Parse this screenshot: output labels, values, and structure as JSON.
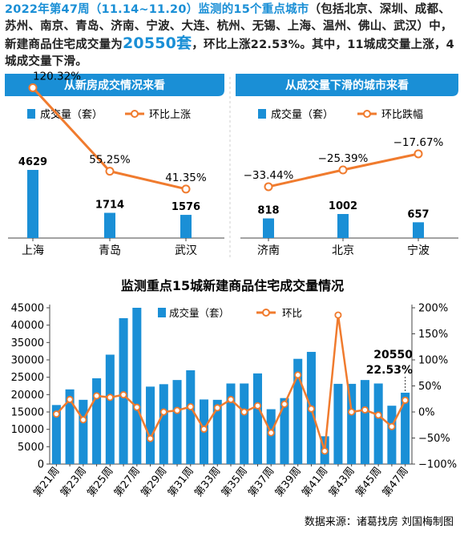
{
  "headline": {
    "lead": "2022年第47周（11.14~11.20）监测的15个重点城市",
    "cities": "（包括北京、深圳、成都、苏州、南京、青岛、济南、宁波、大连、杭州、无锡、上海、温州、佛山、武汉）中，新建商品住宅成交量为",
    "volume": "20550套",
    "rest": "，环比上涨22.53%。其中，11城成交量上涨，4城成交量下滑。"
  },
  "colors": {
    "bar": "#1a8fd6",
    "line": "#f07b2e",
    "panel_header": "#1a8fd6"
  },
  "chart_data": [
    {
      "type": "bar",
      "title": "从新房成交情况来看",
      "legend": [
        "成交量（套）",
        "环比上涨"
      ],
      "categories": [
        "上海",
        "青岛",
        "武汉"
      ],
      "series": [
        {
          "name": "成交量（套）",
          "values": [
            4629,
            1714,
            1576
          ],
          "labels": [
            "4629",
            "1714",
            "1576"
          ]
        },
        {
          "name": "环比上涨",
          "values": [
            120.32,
            55.25,
            41.35
          ],
          "labels": [
            "120.32%",
            "55.25%",
            "41.35%"
          ]
        }
      ]
    },
    {
      "type": "bar",
      "title": "从成交量下滑的城市来看",
      "legend": [
        "成交量（套）",
        "环比跌幅"
      ],
      "categories": [
        "济南",
        "北京",
        "宁波"
      ],
      "series": [
        {
          "name": "成交量（套）",
          "values": [
            818,
            1002,
            657
          ],
          "labels": [
            "818",
            "1002",
            "657"
          ]
        },
        {
          "name": "环比跌幅",
          "values": [
            -33.44,
            -25.39,
            -17.67
          ],
          "labels": [
            "−33.44%",
            "−25.39%",
            "−17.67%"
          ]
        }
      ]
    },
    {
      "type": "bar",
      "title": "监测重点15城新建商品住宅成交量情况",
      "legend": [
        "成交量（套）",
        "环比"
      ],
      "categories": [
        "第21周",
        "第22周",
        "第23周",
        "第24周",
        "第25周",
        "第26周",
        "第27周",
        "第28周",
        "第29周",
        "第30周",
        "第31周",
        "第32周",
        "第33周",
        "第34周",
        "第35周",
        "第36周",
        "第37周",
        "第38周",
        "第39周",
        "第40周",
        "第41周",
        "第42周",
        "第43周",
        "第44周",
        "第45周",
        "第46周",
        "第47周"
      ],
      "tick_labels": [
        "第21周",
        "第23周",
        "第25周",
        "第27周",
        "第29周",
        "第31周",
        "第33周",
        "第35周",
        "第37周",
        "第39周",
        "第41周",
        "第43周",
        "第45周",
        "第47周"
      ],
      "y_ticks": [
        "0",
        "5000",
        "10000",
        "15000",
        "20000",
        "25000",
        "30000",
        "35000",
        "40000",
        "45000"
      ],
      "y2_ticks": [
        "−100%",
        "−50%",
        "0%",
        "50%",
        "100%",
        "150%",
        "200%"
      ],
      "ylim": [
        0,
        45000
      ],
      "y2lim": [
        -100,
        200
      ],
      "series": [
        {
          "name": "成交量（套）",
          "values": [
            17000,
            21500,
            18500,
            24700,
            31500,
            42000,
            45000,
            22300,
            23000,
            24200,
            27000,
            18600,
            18500,
            23200,
            23200,
            26100,
            15800,
            19000,
            30300,
            32300,
            8000,
            23100,
            23100,
            24200,
            23200,
            16800,
            20550
          ]
        },
        {
          "name": "环比",
          "values": [
            -4,
            24,
            -15,
            31,
            28,
            33,
            9,
            -51,
            0,
            3,
            10,
            -33,
            8,
            24,
            0,
            12,
            -40,
            15,
            71,
            6,
            -75,
            186,
            0,
            4,
            -6,
            -28,
            22.53
          ]
        }
      ],
      "callout": {
        "volume": "20550",
        "change": "22.53%"
      }
    }
  ],
  "source": "数据来源：诸葛找房  刘国梅制图"
}
